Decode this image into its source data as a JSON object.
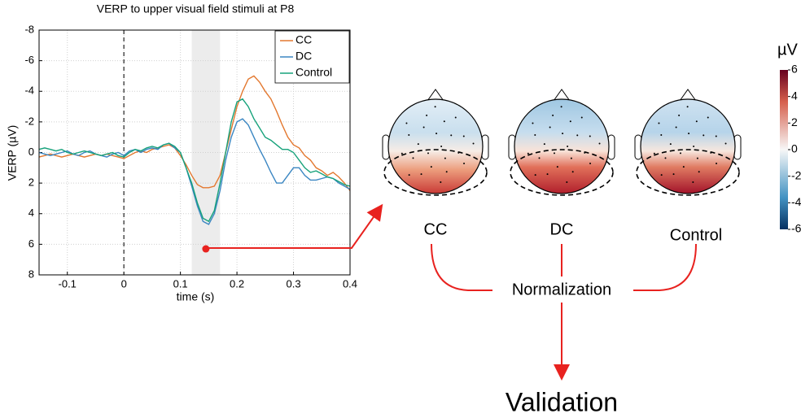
{
  "chart_data": {
    "type": "line",
    "title": "VERP to upper visual field stimuli at P8",
    "x_label": "time (s)",
    "y_label": "VERP (µV)",
    "x": [
      -0.15,
      -0.14,
      -0.13,
      -0.12,
      -0.11,
      -0.1,
      -0.09,
      -0.08,
      -0.07,
      -0.06,
      -0.05,
      -0.04,
      -0.03,
      -0.02,
      -0.01,
      0,
      0.01,
      0.02,
      0.03,
      0.04,
      0.05,
      0.06,
      0.07,
      0.08,
      0.09,
      0.1,
      0.11,
      0.12,
      0.13,
      0.14,
      0.15,
      0.16,
      0.17,
      0.18,
      0.19,
      0.2,
      0.21,
      0.22,
      0.23,
      0.24,
      0.25,
      0.26,
      0.27,
      0.28,
      0.29,
      0.3,
      0.31,
      0.32,
      0.33,
      0.34,
      0.35,
      0.36,
      0.37,
      0.38,
      0.39,
      0.4
    ],
    "series": [
      {
        "name": "CC",
        "color": "#e3782f",
        "values": [
          0.3,
          0.2,
          0.1,
          0.2,
          0.3,
          0.2,
          0.1,
          0.2,
          0.3,
          0.2,
          0.1,
          0.2,
          0.1,
          0.2,
          0.3,
          0.4,
          0.2,
          0,
          -0.1,
          0,
          -0.2,
          -0.3,
          -0.4,
          -0.5,
          -0.3,
          0.2,
          0.8,
          1.5,
          2.1,
          2.3,
          2.3,
          2.2,
          1.5,
          0,
          -1.5,
          -3,
          -4,
          -4.8,
          -5,
          -4.6,
          -4,
          -3.5,
          -2.7,
          -1.8,
          -1,
          -0.5,
          -0.3,
          0.2,
          0.5,
          1,
          1.2,
          1.5,
          1.3,
          1.6,
          2,
          2.5
        ]
      },
      {
        "name": "DC",
        "color": "#3a86c2",
        "values": [
          0,
          0.1,
          0.2,
          0.1,
          0,
          -0.1,
          0.1,
          0.2,
          0,
          -0.1,
          0.1,
          0.2,
          0.3,
          0.1,
          0,
          0.2,
          -0.1,
          -0.2,
          0,
          -0.2,
          -0.3,
          -0.2,
          -0.5,
          -0.6,
          -0.3,
          0,
          1,
          2.2,
          3.5,
          4.5,
          4.7,
          4,
          2.5,
          0.5,
          -1,
          -2,
          -2.2,
          -1.8,
          -1,
          -0.2,
          0.5,
          1.3,
          2,
          2,
          1.5,
          1,
          1,
          1.5,
          1.8,
          1.8,
          1.7,
          1.6,
          1.7,
          2,
          2.2,
          2.4
        ]
      },
      {
        "name": "Control",
        "color": "#17a27b",
        "values": [
          -0.2,
          -0.3,
          -0.2,
          -0.1,
          -0.2,
          0,
          0.1,
          0,
          -0.1,
          0,
          0.1,
          0.2,
          0.1,
          0,
          0.2,
          0.3,
          0,
          -0.2,
          -0.1,
          -0.3,
          -0.4,
          -0.3,
          -0.5,
          -0.6,
          -0.4,
          0,
          1,
          2,
          3.3,
          4.3,
          4.5,
          3.8,
          2,
          0,
          -2,
          -3.3,
          -3.5,
          -3,
          -2.2,
          -1.6,
          -1,
          -0.8,
          -0.5,
          -0.2,
          -0.2,
          0,
          0.5,
          1,
          1.3,
          1.2,
          1.4,
          1.6,
          1.7,
          1.9,
          2.1,
          2.2
        ]
      }
    ],
    "xlim": [
      -0.15,
      0.4
    ],
    "xticks": [
      -0.1,
      0,
      0.1,
      0.2,
      0.3,
      0.4
    ],
    "ylim": [
      -8,
      8
    ],
    "y_inverted": true,
    "yticks": [
      -8,
      -6,
      -4,
      -2,
      0,
      2,
      4,
      6,
      8
    ],
    "grid": true,
    "legend": "upper right",
    "highlight_window": [
      0.12,
      0.17
    ],
    "vline": 0,
    "marker": {
      "x": 0.145,
      "y": 6.3
    }
  },
  "diagram": {
    "topomaps": [
      {
        "label": "CC"
      },
      {
        "label": "DC"
      },
      {
        "label": "Control"
      }
    ],
    "colorbar": {
      "unit": "µV",
      "lim": [
        -6,
        6
      ],
      "ticks": [
        6,
        4,
        2,
        0,
        -2,
        -4,
        -6
      ]
    },
    "steps": {
      "merge": "Normalization",
      "result": "Validation"
    }
  }
}
